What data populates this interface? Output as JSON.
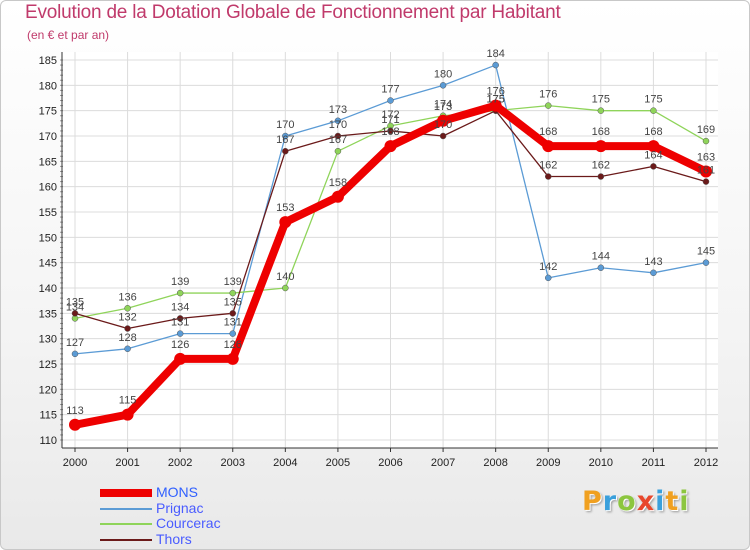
{
  "header": {
    "title": "Evolution de la Dotation Globale de Fonctionnement par Habitant",
    "subtitle": "(en € et par an)"
  },
  "brand": {
    "text": "Proxiti",
    "letters": [
      {
        "ch": "P",
        "color": "#f0a020"
      },
      {
        "ch": "r",
        "color": "#3aa0dc"
      },
      {
        "ch": "o",
        "color": "#8cc63f"
      },
      {
        "ch": "x",
        "color": "#e8472c"
      },
      {
        "ch": "i",
        "color": "#3aa0dc"
      },
      {
        "ch": "t",
        "color": "#f0a020"
      },
      {
        "ch": "i",
        "color": "#8cc63f"
      }
    ]
  },
  "chart_data": {
    "type": "line",
    "title": "Evolution de la Dotation Globale de Fonctionnement par Habitant",
    "subtitle": "(en € et par an)",
    "xlabel": "",
    "ylabel": "",
    "x": [
      "2000",
      "2001",
      "2002",
      "2003",
      "2004",
      "2005",
      "2006",
      "2007",
      "2008",
      "2009",
      "2010",
      "2011",
      "2012"
    ],
    "ylim": [
      110,
      185
    ],
    "yticks": [
      110,
      115,
      120,
      125,
      130,
      135,
      140,
      145,
      150,
      155,
      160,
      165,
      170,
      175,
      180,
      185
    ],
    "grid": true,
    "legend_position": "bottom-left",
    "series": [
      {
        "name": "MONS",
        "color": "#ee0000",
        "emphasis": true,
        "values": [
          113,
          115,
          126,
          126,
          153,
          158,
          168,
          173,
          176,
          168,
          168,
          168,
          163
        ]
      },
      {
        "name": "Prignac",
        "color": "#5b9bd5",
        "values": [
          127,
          128,
          131,
          131,
          170,
          173,
          177,
          180,
          184,
          142,
          144,
          143,
          145
        ]
      },
      {
        "name": "Courcerac",
        "color": "#8fd45a",
        "values": [
          134,
          136,
          139,
          139,
          140,
          167,
          172,
          174,
          175,
          176,
          175,
          175,
          169
        ]
      },
      {
        "name": "Thors",
        "color": "#6b1a1a",
        "values": [
          135,
          132,
          134,
          135,
          167,
          170,
          171,
          170,
          175,
          162,
          162,
          164,
          161
        ]
      }
    ]
  }
}
